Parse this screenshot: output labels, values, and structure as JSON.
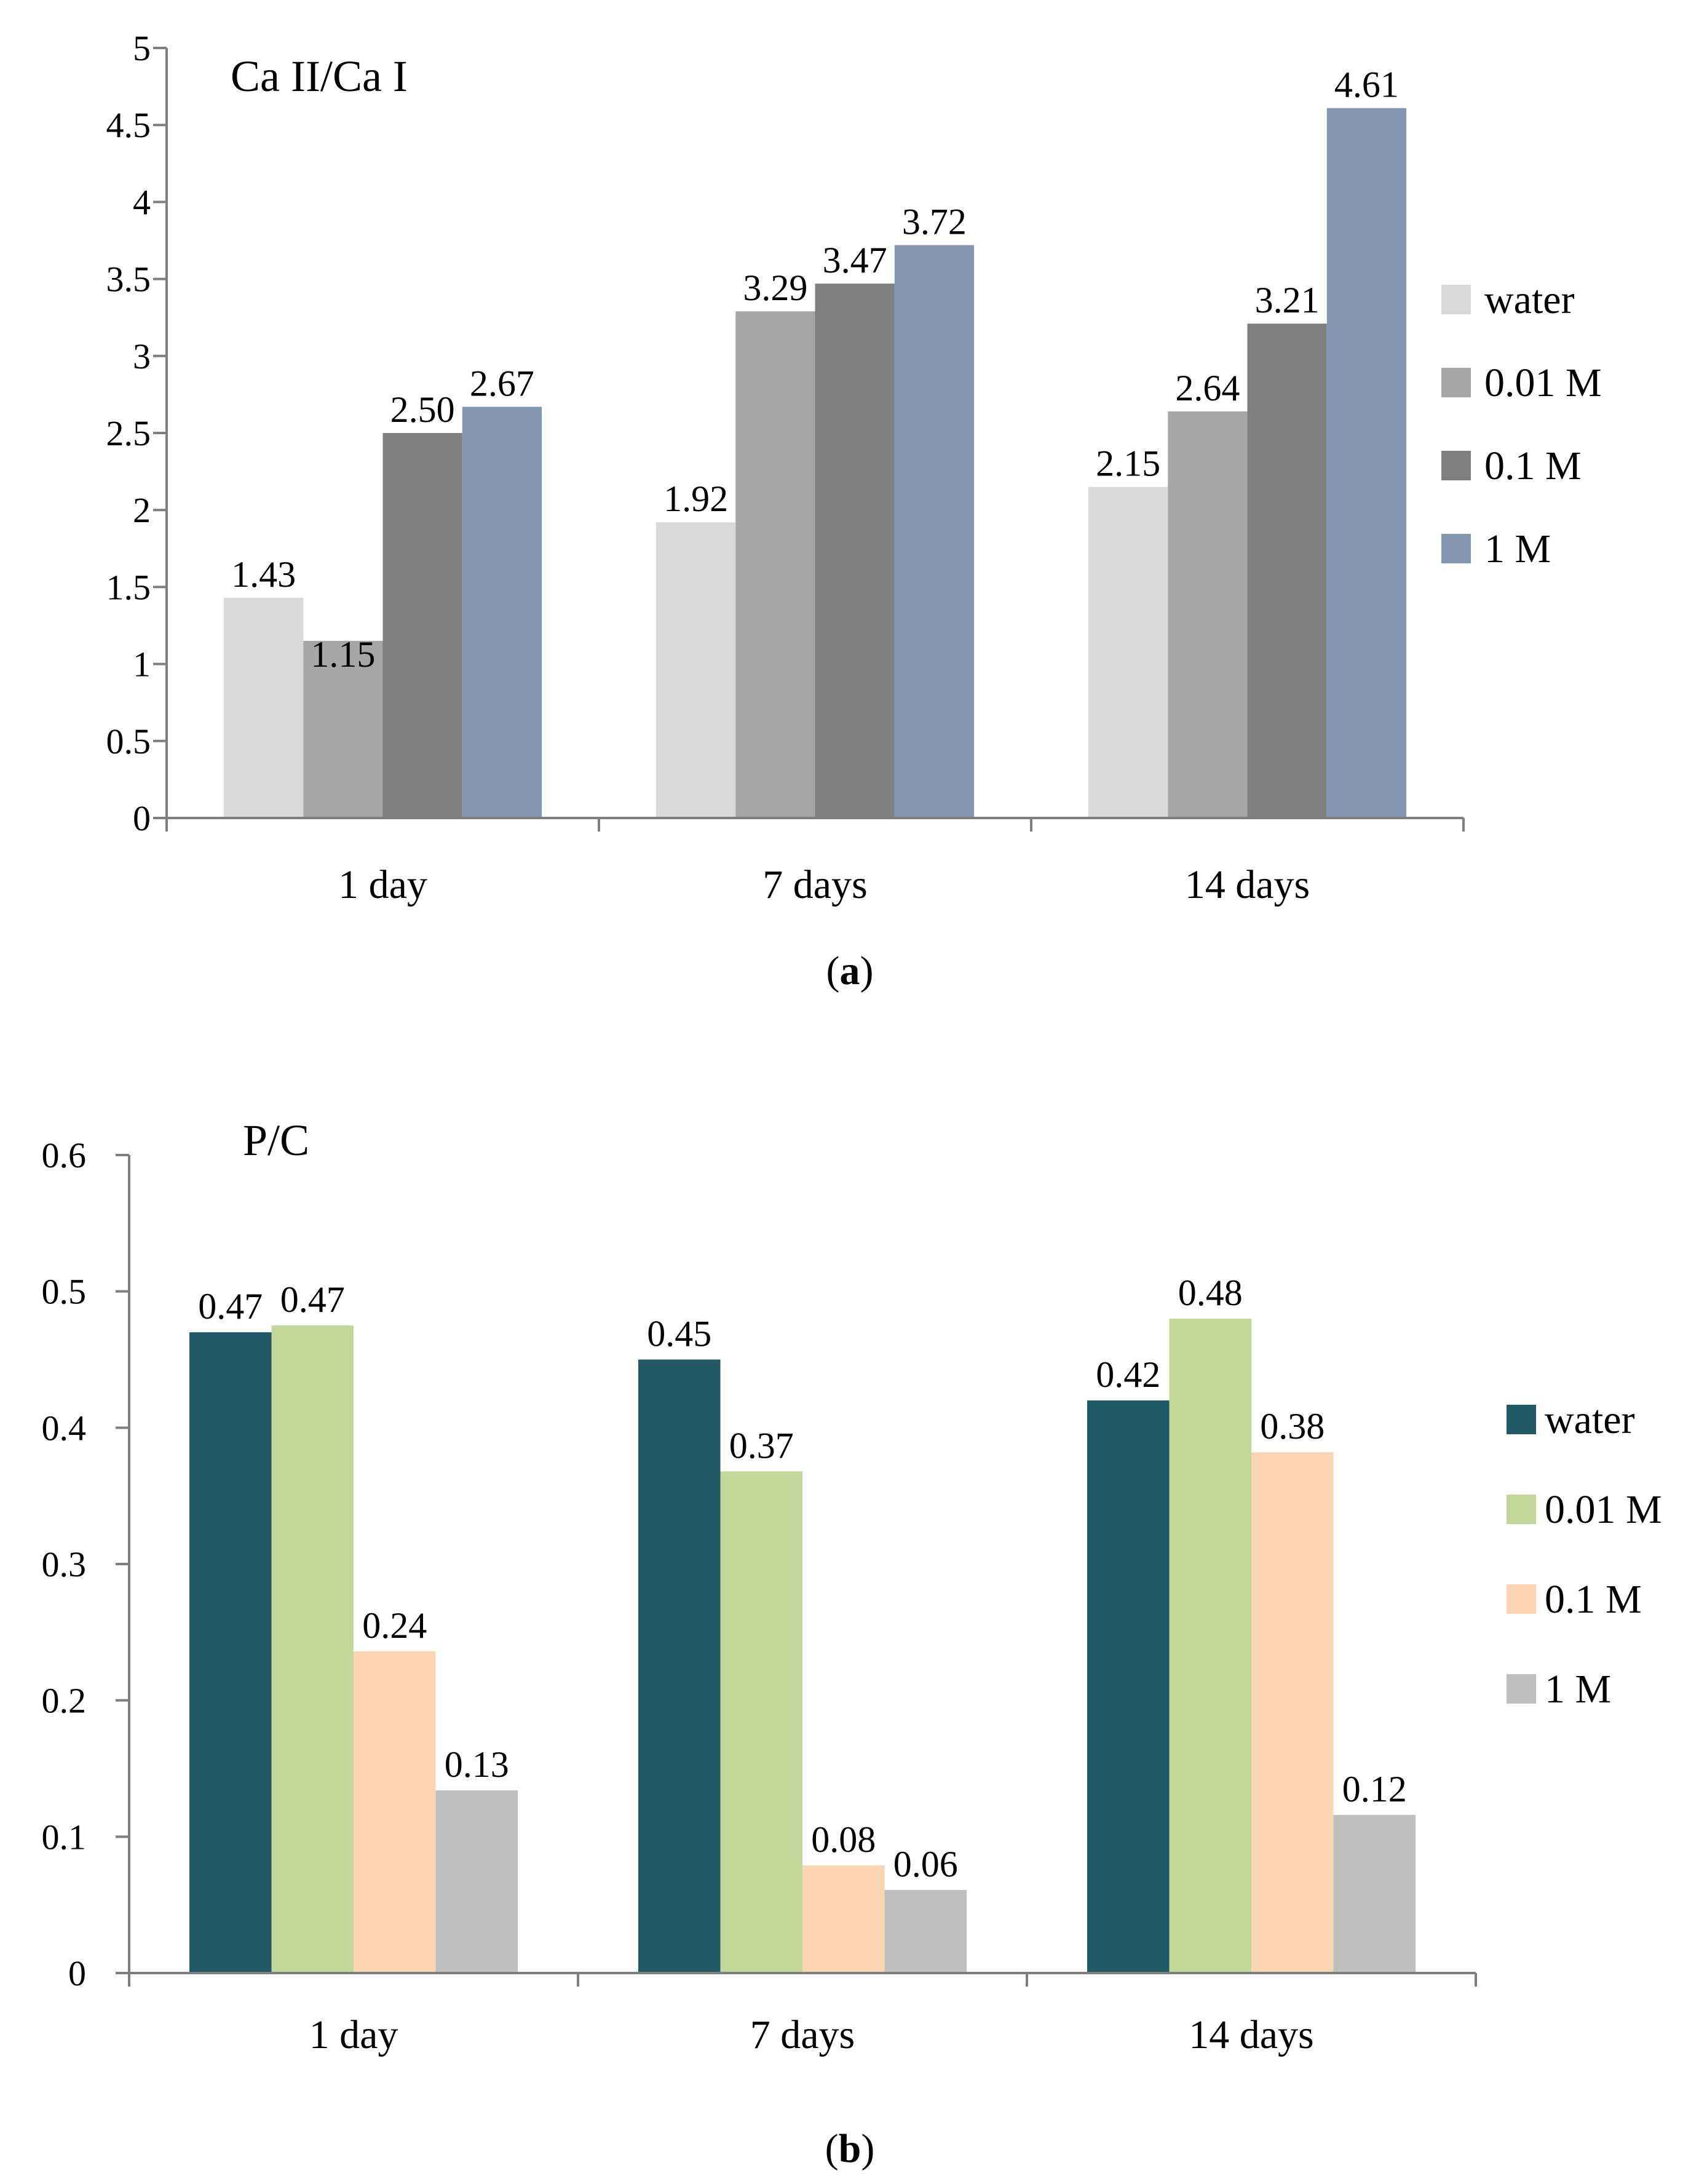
{
  "chart_data": [
    {
      "type": "bar",
      "panel": "a",
      "caption_open": "(",
      "caption_letter": "a",
      "caption_close": ")",
      "title": "Ca II/Ca I",
      "xlabel": "",
      "ylabel": "",
      "categories": [
        "1 day",
        "7 days",
        "14 days"
      ],
      "ylim": [
        0,
        5
      ],
      "yticks": [
        0,
        0.5,
        1,
        1.5,
        2,
        2.5,
        3,
        3.5,
        4,
        4.5,
        5
      ],
      "ytick_labels": [
        "0",
        "0.5",
        "1",
        "1.5",
        "2",
        "2.5",
        "3",
        "3.5",
        "4",
        "4.5",
        "5"
      ],
      "grid": false,
      "legend_position": "right",
      "series": [
        {
          "name": "water",
          "color": "#d9d9d9",
          "values": [
            1.43,
            1.92,
            2.15
          ],
          "labels": [
            "1.43",
            "1.92",
            "2.15"
          ]
        },
        {
          "name": "0.01 M",
          "color": "#a6a6a6",
          "values": [
            1.15,
            3.29,
            2.64
          ],
          "labels": [
            "1.15",
            "3.29",
            "2.64"
          ]
        },
        {
          "name": "0.1 M",
          "color": "#7f7f7f",
          "values": [
            2.5,
            3.47,
            3.21
          ],
          "labels": [
            "2.50",
            "3.47",
            "3.21"
          ]
        },
        {
          "name": "1 M",
          "color": "#8497b0",
          "values": [
            2.67,
            3.72,
            4.61
          ],
          "labels": [
            "2.67",
            "3.72",
            "4.61"
          ]
        }
      ]
    },
    {
      "type": "bar",
      "panel": "b",
      "caption_open": "(",
      "caption_letter": "b",
      "caption_close": ")",
      "title": "P/C",
      "xlabel": "",
      "ylabel": "",
      "categories": [
        "1 day",
        "7 days",
        "14 days"
      ],
      "ylim": [
        0,
        0.6
      ],
      "yticks": [
        0,
        0.1,
        0.2,
        0.3,
        0.4,
        0.5,
        0.6
      ],
      "ytick_labels": [
        "0",
        "0.1",
        "0.2",
        "0.3",
        "0.4",
        "0.5",
        "0.6"
      ],
      "grid": false,
      "legend_position": "right",
      "series": [
        {
          "name": "water",
          "color": "#215967",
          "values": [
            0.47,
            0.45,
            0.42
          ],
          "labels": [
            "0.47",
            "0.45",
            "0.42"
          ]
        },
        {
          "name": "0.01 M",
          "color": "#c4d79b",
          "values": [
            0.475,
            0.368,
            0.48
          ],
          "labels": [
            "0.47",
            "0.37",
            "0.48"
          ]
        },
        {
          "name": "0.1 M",
          "color": "#fcd5b4",
          "values": [
            0.236,
            0.079,
            0.382
          ],
          "labels": [
            "0.24",
            "0.08",
            "0.38"
          ]
        },
        {
          "name": "1 M",
          "color": "#bfbfbf",
          "values": [
            0.134,
            0.061,
            0.116
          ],
          "labels": [
            "0.13",
            "0.06",
            "0.12"
          ]
        }
      ]
    }
  ]
}
